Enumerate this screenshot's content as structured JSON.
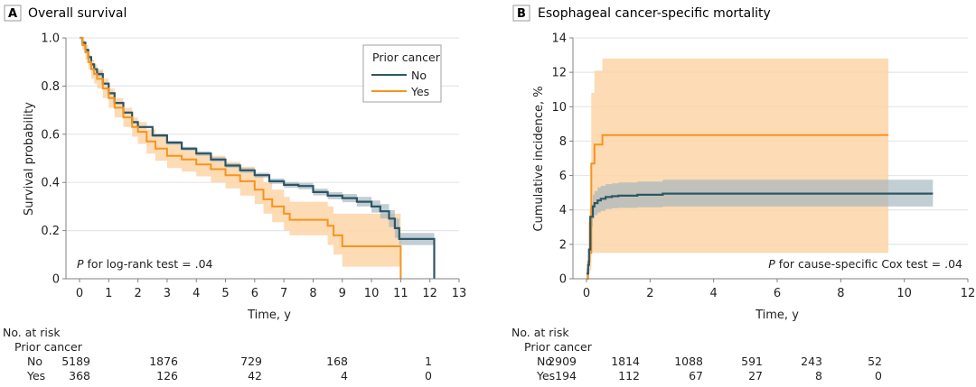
{
  "colors": {
    "no": "#2e5665",
    "yes": "#f7941d",
    "no_band": "#9fb3bd",
    "yes_band": "#fcd5a8",
    "grid": "#e6e6e6",
    "axis": "#808080"
  },
  "chart_data": [
    {
      "id": "A",
      "type": "line",
      "panel_label": "A",
      "title": "Overall survival",
      "xlabel": "Time, y",
      "ylabel": "Survival probability",
      "xlim": [
        0,
        13
      ],
      "ylim": [
        0,
        1.0
      ],
      "xticks": [
        0,
        1,
        2,
        3,
        4,
        5,
        6,
        7,
        8,
        9,
        10,
        11,
        12,
        13
      ],
      "xtick_labels": [
        "0",
        "1",
        "2",
        "3",
        "4",
        "5",
        "6",
        "7",
        "8",
        "9",
        "10",
        "11",
        "12",
        "13"
      ],
      "yticks": [
        0,
        0.2,
        0.4,
        0.6,
        0.8,
        1.0
      ],
      "ytick_labels": [
        "0",
        "0.2",
        "0.4",
        "0.6",
        "0.8",
        "1.0"
      ],
      "grid": "horizontal",
      "legend": {
        "title": "Prior cancer",
        "placement": "top-right",
        "entries": [
          "No",
          "Yes"
        ]
      },
      "annotation": {
        "italic": "P",
        "text": " for log-rank test = .04",
        "placement": "bottom-left"
      },
      "series": [
        {
          "name": "No",
          "x": [
            0,
            0.1,
            0.2,
            0.3,
            0.4,
            0.5,
            0.6,
            0.8,
            1.0,
            1.2,
            1.5,
            1.8,
            2.0,
            2.5,
            3.0,
            3.5,
            4.0,
            4.5,
            5.0,
            5.5,
            6.0,
            6.5,
            7.0,
            7.5,
            8.0,
            8.5,
            9.0,
            9.5,
            10.0,
            10.3,
            10.6,
            10.8,
            10.95,
            12.15,
            12.15
          ],
          "y": [
            1.0,
            0.98,
            0.95,
            0.92,
            0.89,
            0.87,
            0.85,
            0.81,
            0.77,
            0.73,
            0.69,
            0.65,
            0.63,
            0.595,
            0.565,
            0.54,
            0.52,
            0.495,
            0.47,
            0.45,
            0.43,
            0.405,
            0.39,
            0.385,
            0.36,
            0.345,
            0.335,
            0.32,
            0.3,
            0.28,
            0.25,
            0.21,
            0.165,
            0.165,
            0.0
          ],
          "ci_lower": [
            1.0,
            0.975,
            0.945,
            0.915,
            0.885,
            0.865,
            0.84,
            0.805,
            0.765,
            0.725,
            0.685,
            0.645,
            0.625,
            0.588,
            0.557,
            0.532,
            0.511,
            0.486,
            0.461,
            0.44,
            0.42,
            0.394,
            0.378,
            0.372,
            0.346,
            0.33,
            0.318,
            0.3,
            0.275,
            0.25,
            0.215,
            0.17,
            0.14,
            0.165,
            0.0
          ],
          "ci_upper": [
            1.0,
            0.985,
            0.955,
            0.925,
            0.895,
            0.875,
            0.86,
            0.815,
            0.775,
            0.735,
            0.695,
            0.655,
            0.635,
            0.602,
            0.573,
            0.548,
            0.529,
            0.504,
            0.479,
            0.46,
            0.44,
            0.416,
            0.402,
            0.398,
            0.374,
            0.36,
            0.352,
            0.34,
            0.325,
            0.31,
            0.285,
            0.25,
            0.19,
            0.165,
            0.0
          ]
        },
        {
          "name": "Yes",
          "x": [
            0,
            0.1,
            0.2,
            0.3,
            0.4,
            0.5,
            0.6,
            0.8,
            1.0,
            1.2,
            1.5,
            1.8,
            2.0,
            2.3,
            2.6,
            3.0,
            3.5,
            4.0,
            4.5,
            5.0,
            5.5,
            6.0,
            6.3,
            6.6,
            7.0,
            7.2,
            8.5,
            8.7,
            9.0,
            11.0,
            11.0
          ],
          "y": [
            1.0,
            0.97,
            0.94,
            0.9,
            0.87,
            0.85,
            0.83,
            0.79,
            0.75,
            0.71,
            0.67,
            0.63,
            0.61,
            0.57,
            0.54,
            0.51,
            0.495,
            0.475,
            0.455,
            0.43,
            0.405,
            0.37,
            0.33,
            0.3,
            0.27,
            0.245,
            0.22,
            0.18,
            0.135,
            0.135,
            0.0
          ],
          "ci_lower": [
            1.0,
            0.95,
            0.91,
            0.87,
            0.83,
            0.81,
            0.79,
            0.75,
            0.71,
            0.67,
            0.63,
            0.59,
            0.56,
            0.52,
            0.49,
            0.46,
            0.445,
            0.425,
            0.4,
            0.375,
            0.345,
            0.31,
            0.27,
            0.235,
            0.2,
            0.18,
            0.14,
            0.1,
            0.05,
            0.05,
            0.0
          ],
          "ci_upper": [
            1.0,
            0.99,
            0.97,
            0.93,
            0.91,
            0.89,
            0.87,
            0.83,
            0.79,
            0.75,
            0.71,
            0.67,
            0.65,
            0.62,
            0.59,
            0.56,
            0.545,
            0.525,
            0.51,
            0.485,
            0.465,
            0.43,
            0.4,
            0.37,
            0.34,
            0.32,
            0.3,
            0.27,
            0.27,
            0.27,
            0.0
          ]
        }
      ],
      "risk_table": {
        "title": "No. at risk",
        "group_label": "Prior cancer",
        "times": [
          0,
          3,
          6,
          9,
          12
        ],
        "rows": [
          {
            "label": "No",
            "values": [
              "5189",
              "1876",
              "729",
              "168",
              "1"
            ]
          },
          {
            "label": "Yes",
            "values": [
              "368",
              "126",
              "42",
              "4",
              "0"
            ]
          }
        ]
      }
    },
    {
      "id": "B",
      "type": "line",
      "panel_label": "B",
      "title": "Esophageal cancer-specific mortality",
      "xlabel": "Time, y",
      "ylabel": "Cumulative incidence, %",
      "xlim": [
        0,
        12
      ],
      "ylim": [
        0,
        14
      ],
      "xticks": [
        0,
        2,
        4,
        6,
        8,
        10,
        12
      ],
      "xtick_labels": [
        "0",
        "2",
        "4",
        "6",
        "8",
        "10",
        "12"
      ],
      "yticks": [
        0,
        2,
        4,
        6,
        8,
        10,
        12,
        14
      ],
      "ytick_labels": [
        "0",
        "2",
        "4",
        "6",
        "8",
        "10",
        "12",
        "14"
      ],
      "grid": "horizontal",
      "annotation": {
        "italic": "P",
        "text": " for cause-specific Cox test = .04",
        "placement": "bottom-right"
      },
      "series": [
        {
          "name": "No",
          "x": [
            0,
            0.05,
            0.08,
            0.12,
            0.2,
            0.25,
            0.35,
            0.45,
            0.6,
            0.8,
            1.0,
            1.6,
            2.4,
            10.9
          ],
          "y": [
            0.3,
            0.8,
            1.7,
            3.6,
            4.2,
            4.4,
            4.55,
            4.65,
            4.75,
            4.8,
            4.83,
            4.88,
            4.95,
            4.95
          ],
          "ci_lower": [
            0.1,
            0.5,
            1.2,
            3.0,
            3.5,
            3.7,
            3.85,
            3.95,
            4.05,
            4.1,
            4.12,
            4.16,
            4.2,
            4.2
          ],
          "ci_upper": [
            0.6,
            1.2,
            2.3,
            4.3,
            4.9,
            5.1,
            5.3,
            5.4,
            5.5,
            5.55,
            5.6,
            5.65,
            5.75,
            5.75
          ]
        },
        {
          "name": "Yes",
          "x": [
            0,
            0.05,
            0.1,
            0.15,
            0.25,
            0.5,
            9.5
          ],
          "y": [
            0.0,
            1.0,
            1.5,
            6.7,
            7.8,
            8.35,
            8.35
          ],
          "ci_lower": [
            0.0,
            0.3,
            0.5,
            1.5,
            1.5,
            1.5,
            1.5
          ],
          "ci_upper": [
            0.5,
            3.3,
            4.1,
            10.8,
            12.1,
            12.8,
            12.8
          ]
        }
      ],
      "risk_table": {
        "title": "No. at risk",
        "group_label": "Prior cancer",
        "times": [
          0,
          2,
          4,
          6,
          8,
          10
        ],
        "rows": [
          {
            "label": "No",
            "values": [
              "2909",
              "1814",
              "1088",
              "591",
              "243",
              "52"
            ]
          },
          {
            "label": "Yes",
            "values": [
              "194",
              "112",
              "67",
              "27",
              "8",
              "0"
            ]
          }
        ]
      }
    }
  ]
}
